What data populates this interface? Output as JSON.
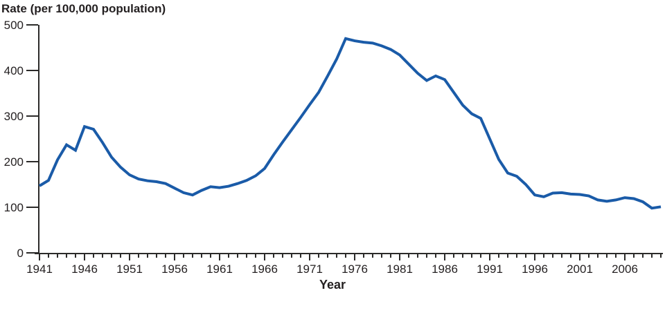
{
  "chart_data": {
    "type": "line",
    "title": "Rate (per 100,000 population)",
    "xlabel": "Year",
    "grid": false,
    "legend_position": "none",
    "x_min": 1941,
    "x_max": 2010,
    "ylim": [
      0,
      500
    ],
    "y_ticks": [
      0,
      100,
      200,
      300,
      400,
      500
    ],
    "x_tick_labels": [
      1941,
      1946,
      1951,
      1956,
      1961,
      1966,
      1971,
      1976,
      1981,
      1986,
      1991,
      1996,
      2001,
      2006
    ],
    "minor_x_tick_interval_years": 1,
    "line_color": "#1A5BA8",
    "axis_color": "#2b2a29",
    "text_color": "#231f20",
    "series": [
      {
        "name": "Rate (per 100,000 population)",
        "years": [
          1941,
          1942,
          1943,
          1944,
          1945,
          1946,
          1947,
          1948,
          1949,
          1950,
          1951,
          1952,
          1953,
          1954,
          1955,
          1956,
          1957,
          1958,
          1959,
          1960,
          1961,
          1962,
          1963,
          1964,
          1965,
          1966,
          1967,
          1968,
          1969,
          1970,
          1971,
          1972,
          1973,
          1974,
          1975,
          1976,
          1977,
          1978,
          1979,
          1980,
          1981,
          1982,
          1983,
          1984,
          1985,
          1986,
          1987,
          1988,
          1989,
          1990,
          1991,
          1992,
          1993,
          1994,
          1995,
          1996,
          1997,
          1998,
          1999,
          2000,
          2001,
          2002,
          2003,
          2004,
          2005,
          2006,
          2007,
          2008,
          2009,
          2010
        ],
        "values": [
          147,
          159,
          204,
          237,
          225,
          277,
          271,
          242,
          210,
          188,
          171,
          162,
          158,
          156,
          152,
          142,
          132,
          127,
          137,
          145,
          143,
          146,
          152,
          159,
          169,
          185,
          215,
          243,
          270,
          297,
          325,
          352,
          388,
          425,
          470,
          465,
          462,
          460,
          454,
          446,
          434,
          414,
          394,
          378,
          388,
          380,
          352,
          324,
          305,
          295,
          250,
          205,
          175,
          168,
          150,
          127,
          123,
          131,
          132,
          129,
          128,
          125,
          116,
          113,
          116,
          121,
          119,
          112,
          98,
          101
        ]
      }
    ]
  }
}
